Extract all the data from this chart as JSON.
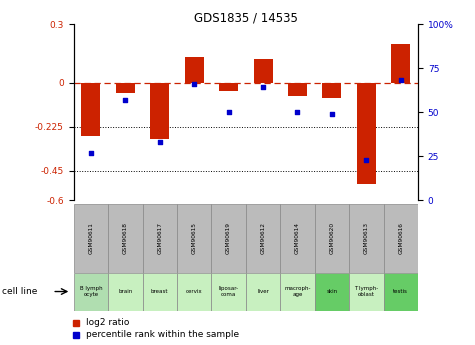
{
  "title": "GDS1835 / 14535",
  "samples": [
    "GSM90611",
    "GSM90618",
    "GSM90617",
    "GSM90615",
    "GSM90619",
    "GSM90612",
    "GSM90614",
    "GSM90620",
    "GSM90613",
    "GSM90616"
  ],
  "cell_line_texts": [
    "B lymph\nocyte",
    "brain",
    "breast",
    "cervix",
    "liposar-\ncoma",
    "liver",
    "macroph-\nage",
    "skin",
    "T lymph-\noblast",
    "testis"
  ],
  "log2_ratio": [
    -0.27,
    -0.05,
    -0.29,
    0.13,
    -0.04,
    0.12,
    -0.07,
    -0.08,
    -0.52,
    0.2
  ],
  "percentile_rank": [
    27,
    57,
    33,
    66,
    50,
    64,
    50,
    49,
    23,
    68
  ],
  "ylim_left": [
    -0.6,
    0.3
  ],
  "ylim_right": [
    0,
    100
  ],
  "yticks_left": [
    -0.6,
    -0.45,
    -0.225,
    0,
    0.3
  ],
  "yticks_right": [
    0,
    25,
    50,
    75,
    100
  ],
  "hlines": [
    -0.225,
    -0.45
  ],
  "bar_color": "#cc2200",
  "dot_color": "#0000cc",
  "zero_line_color": "#cc2200",
  "hline_color": "#000000",
  "gsm_row_color": "#bbbbbb",
  "cell_line_colors": [
    "#b0deb0",
    "#c8f0c0",
    "#c8f0c0",
    "#c8f0c0",
    "#c8f0c0",
    "#c8f0c0",
    "#c8f0c0",
    "#66cc66",
    "#c8f0c0",
    "#66cc66"
  ],
  "legend_red_label": "log2 ratio",
  "legend_blue_label": "percentile rank within the sample",
  "cell_line_label": "cell line"
}
